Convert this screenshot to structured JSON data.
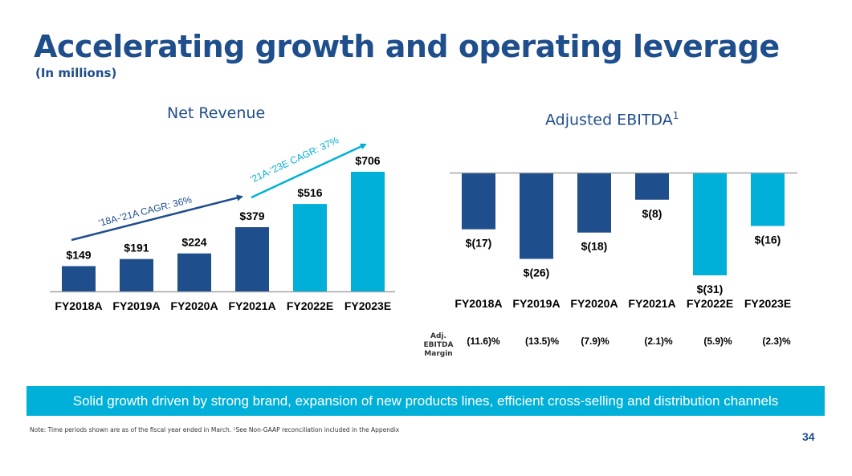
{
  "header": {
    "title": "Accelerating growth and operating leverage",
    "subtitle": "(In millions)"
  },
  "colors": {
    "actual": "#1f4e8c",
    "estimate": "#00b0d8",
    "title": "#1f4e8c",
    "banner": "#00b0d8"
  },
  "chart_data": [
    {
      "type": "bar",
      "title": "Net Revenue",
      "categories": [
        "FY2018A",
        "FY2019A",
        "FY2020A",
        "FY2021A",
        "FY2022E",
        "FY2023E"
      ],
      "values": [
        149,
        191,
        224,
        379,
        516,
        706
      ],
      "value_labels": [
        "$149",
        "$191",
        "$224",
        "$379",
        "$516",
        "$706"
      ],
      "series_type": [
        "actual",
        "actual",
        "actual",
        "actual",
        "estimate",
        "estimate"
      ],
      "ylim": [
        0,
        706
      ],
      "xlabel": "",
      "ylabel": "",
      "grid": false,
      "annotations": [
        {
          "text": "'18A-'21A CAGR: 36%",
          "from": "FY2018A",
          "to": "FY2021A",
          "color": "#1f4e8c"
        },
        {
          "text": "'21A-'23E CAGR: 37%",
          "from": "FY2021A",
          "to": "FY2023E",
          "color": "#00b0d8"
        }
      ]
    },
    {
      "type": "bar",
      "title": "Adjusted EBITDA",
      "title_superscript": "1",
      "categories": [
        "FY2018A",
        "FY2019A",
        "FY2020A",
        "FY2021A",
        "FY2022E",
        "FY2023E"
      ],
      "values": [
        -17,
        -26,
        -18,
        -8,
        -31,
        -16
      ],
      "value_labels": [
        "$(17)",
        "$(26)",
        "$(18)",
        "$(8)",
        "$(31)",
        "$(16)"
      ],
      "series_type": [
        "actual",
        "actual",
        "actual",
        "actual",
        "estimate",
        "estimate"
      ],
      "ylim": [
        -31,
        0
      ],
      "xlabel": "",
      "ylabel": "",
      "grid": false,
      "margin_row": {
        "label_line1": "Adj. EBITDA",
        "label_line2": "Margin",
        "values": [
          "(11.6)%",
          "(13.5)%",
          "(7.9)%",
          "(2.1)%",
          "(5.9)%",
          "(2.3)%"
        ]
      }
    }
  ],
  "banner": {
    "text": "Solid growth driven by strong brand, expansion of new products lines, efficient cross-selling and distribution channels"
  },
  "footer": {
    "note": "Note: Time periods shown are as of the fiscal year ended in March. ¹See Non-GAAP reconciliation included in the Appendix",
    "page_number": "34"
  }
}
